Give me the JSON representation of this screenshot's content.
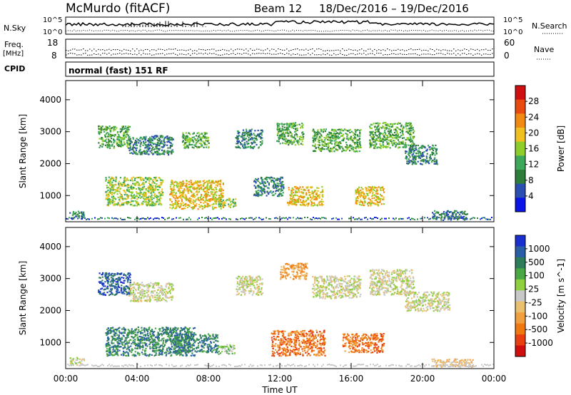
{
  "header": {
    "site": "McMurdo (fitACF)",
    "beam": "Beam 12",
    "date_range": "18/Dec/2016 – 19/Dec/2016"
  },
  "strip_labels": {
    "nsky": "N.Sky",
    "freq_top": "Freq.",
    "freq_unit": "[MHz]",
    "cpid": "CPID",
    "nsearch": "N.Search",
    "nave": "Nave",
    "cpid_value": "normal (fast) 151 RF"
  },
  "noise_axis": {
    "top": "10^5",
    "bottom": "10^0"
  },
  "freq_axis": {
    "ticks": [
      "18",
      "8"
    ]
  },
  "nave_axis": {
    "ticks": [
      "60",
      "0"
    ]
  },
  "colors": {
    "power": [
      "#0a14e6",
      "#2a4fb0",
      "#2e7d3a",
      "#3ea85a",
      "#8fce2a",
      "#f0c020",
      "#f08a10",
      "#e84a10",
      "#d01010"
    ],
    "velocity": [
      "#1a2fd0",
      "#2a5fa8",
      "#2e7d5a",
      "#4aa844",
      "#8fd040",
      "#c8c8c8",
      "#e8c070",
      "#f0a040",
      "#f07810",
      "#e84010",
      "#d00e0e"
    ],
    "ground": "#b0b0b0"
  },
  "chart_data": [
    {
      "type": "heatmap",
      "title": "Power",
      "xlabel": "Time UT",
      "ylabel": "Slant Range [km]",
      "x_ticks": [
        "00:00",
        "04:00",
        "08:00",
        "12:00",
        "16:00",
        "20:00",
        "00:00"
      ],
      "xlim_hours": [
        0,
        24
      ],
      "y_ticks": [
        1000,
        2000,
        3000,
        4000
      ],
      "ylim_km": [
        180,
        4600
      ],
      "colorbar": {
        "label": "Power [dB]",
        "ticks": [
          "4",
          "8",
          "12",
          "16",
          "20",
          "24",
          "28"
        ],
        "range": [
          0,
          30
        ]
      },
      "echo_regions": [
        {
          "t": [
            0.2,
            1.0
          ],
          "r": [
            300,
            550
          ],
          "level": 2
        },
        {
          "t": [
            1.8,
            3.6
          ],
          "r": [
            2500,
            3200
          ],
          "level": 3
        },
        {
          "t": [
            2.2,
            5.4
          ],
          "r": [
            700,
            1600
          ],
          "level": 4
        },
        {
          "t": [
            3.5,
            6.0
          ],
          "r": [
            2300,
            2900
          ],
          "level": 2
        },
        {
          "t": [
            5.8,
            8.8
          ],
          "r": [
            600,
            1500
          ],
          "level": 5
        },
        {
          "t": [
            6.5,
            8.0
          ],
          "r": [
            2500,
            3000
          ],
          "level": 3
        },
        {
          "t": [
            8.5,
            9.5
          ],
          "r": [
            650,
            950
          ],
          "level": 4
        },
        {
          "t": [
            9.5,
            11.0
          ],
          "r": [
            2500,
            3100
          ],
          "level": 2
        },
        {
          "t": [
            10.5,
            12.2
          ],
          "r": [
            1000,
            1600
          ],
          "level": 2
        },
        {
          "t": [
            11.8,
            13.3
          ],
          "r": [
            2600,
            3300
          ],
          "level": 3
        },
        {
          "t": [
            12.4,
            14.4
          ],
          "r": [
            700,
            1300
          ],
          "level": 5
        },
        {
          "t": [
            13.8,
            16.5
          ],
          "r": [
            2400,
            3100
          ],
          "level": 3
        },
        {
          "t": [
            16.2,
            17.8
          ],
          "r": [
            700,
            1300
          ],
          "level": 5
        },
        {
          "t": [
            17.0,
            19.5
          ],
          "r": [
            2500,
            3300
          ],
          "level": 3
        },
        {
          "t": [
            19.0,
            20.8
          ],
          "r": [
            2000,
            2600
          ],
          "level": 2
        },
        {
          "t": [
            20.5,
            22.5
          ],
          "r": [
            250,
            550
          ],
          "level": 2
        }
      ]
    },
    {
      "type": "heatmap",
      "title": "Velocity",
      "xlabel": "Time UT",
      "ylabel": "Slant Range [km]",
      "x_ticks": [
        "00:00",
        "04:00",
        "08:00",
        "12:00",
        "16:00",
        "20:00",
        "00:00"
      ],
      "xlim_hours": [
        0,
        24
      ],
      "y_ticks": [
        1000,
        2000,
        3000,
        4000
      ],
      "ylim_km": [
        180,
        4600
      ],
      "colorbar": {
        "label": "Velocity [m s^-1]",
        "ticks": [
          "1000",
          "500",
          "100",
          "25",
          "-25",
          "-100",
          "-500",
          "-1000"
        ],
        "range": [
          -1000,
          1000
        ]
      },
      "echo_regions": [
        {
          "t": [
            0.2,
            1.0
          ],
          "r": [
            300,
            550
          ],
          "level": 5
        },
        {
          "t": [
            1.8,
            3.6
          ],
          "r": [
            2500,
            3200
          ],
          "level": 1
        },
        {
          "t": [
            2.2,
            7.2
          ],
          "r": [
            600,
            1500
          ],
          "level": 2
        },
        {
          "t": [
            3.5,
            6.0
          ],
          "r": [
            2300,
            2900
          ],
          "level": 5
        },
        {
          "t": [
            6.0,
            8.5
          ],
          "r": [
            700,
            1300
          ],
          "level": 2
        },
        {
          "t": [
            8.5,
            9.5
          ],
          "r": [
            650,
            950
          ],
          "level": 4
        },
        {
          "t": [
            9.5,
            11.0
          ],
          "r": [
            2500,
            3100
          ],
          "level": 5
        },
        {
          "t": [
            11.5,
            14.5
          ],
          "r": [
            600,
            1400
          ],
          "level": 8
        },
        {
          "t": [
            12.0,
            13.5
          ],
          "r": [
            3000,
            3500
          ],
          "level": 7
        },
        {
          "t": [
            13.8,
            16.5
          ],
          "r": [
            2400,
            3100
          ],
          "level": 5
        },
        {
          "t": [
            15.5,
            17.8
          ],
          "r": [
            700,
            1300
          ],
          "level": 8
        },
        {
          "t": [
            17.0,
            19.5
          ],
          "r": [
            2500,
            3300
          ],
          "level": 5
        },
        {
          "t": [
            19.0,
            21.5
          ],
          "r": [
            2000,
            2600
          ],
          "level": 5
        },
        {
          "t": [
            20.5,
            22.8
          ],
          "r": [
            250,
            500
          ],
          "level": 6
        }
      ]
    }
  ]
}
